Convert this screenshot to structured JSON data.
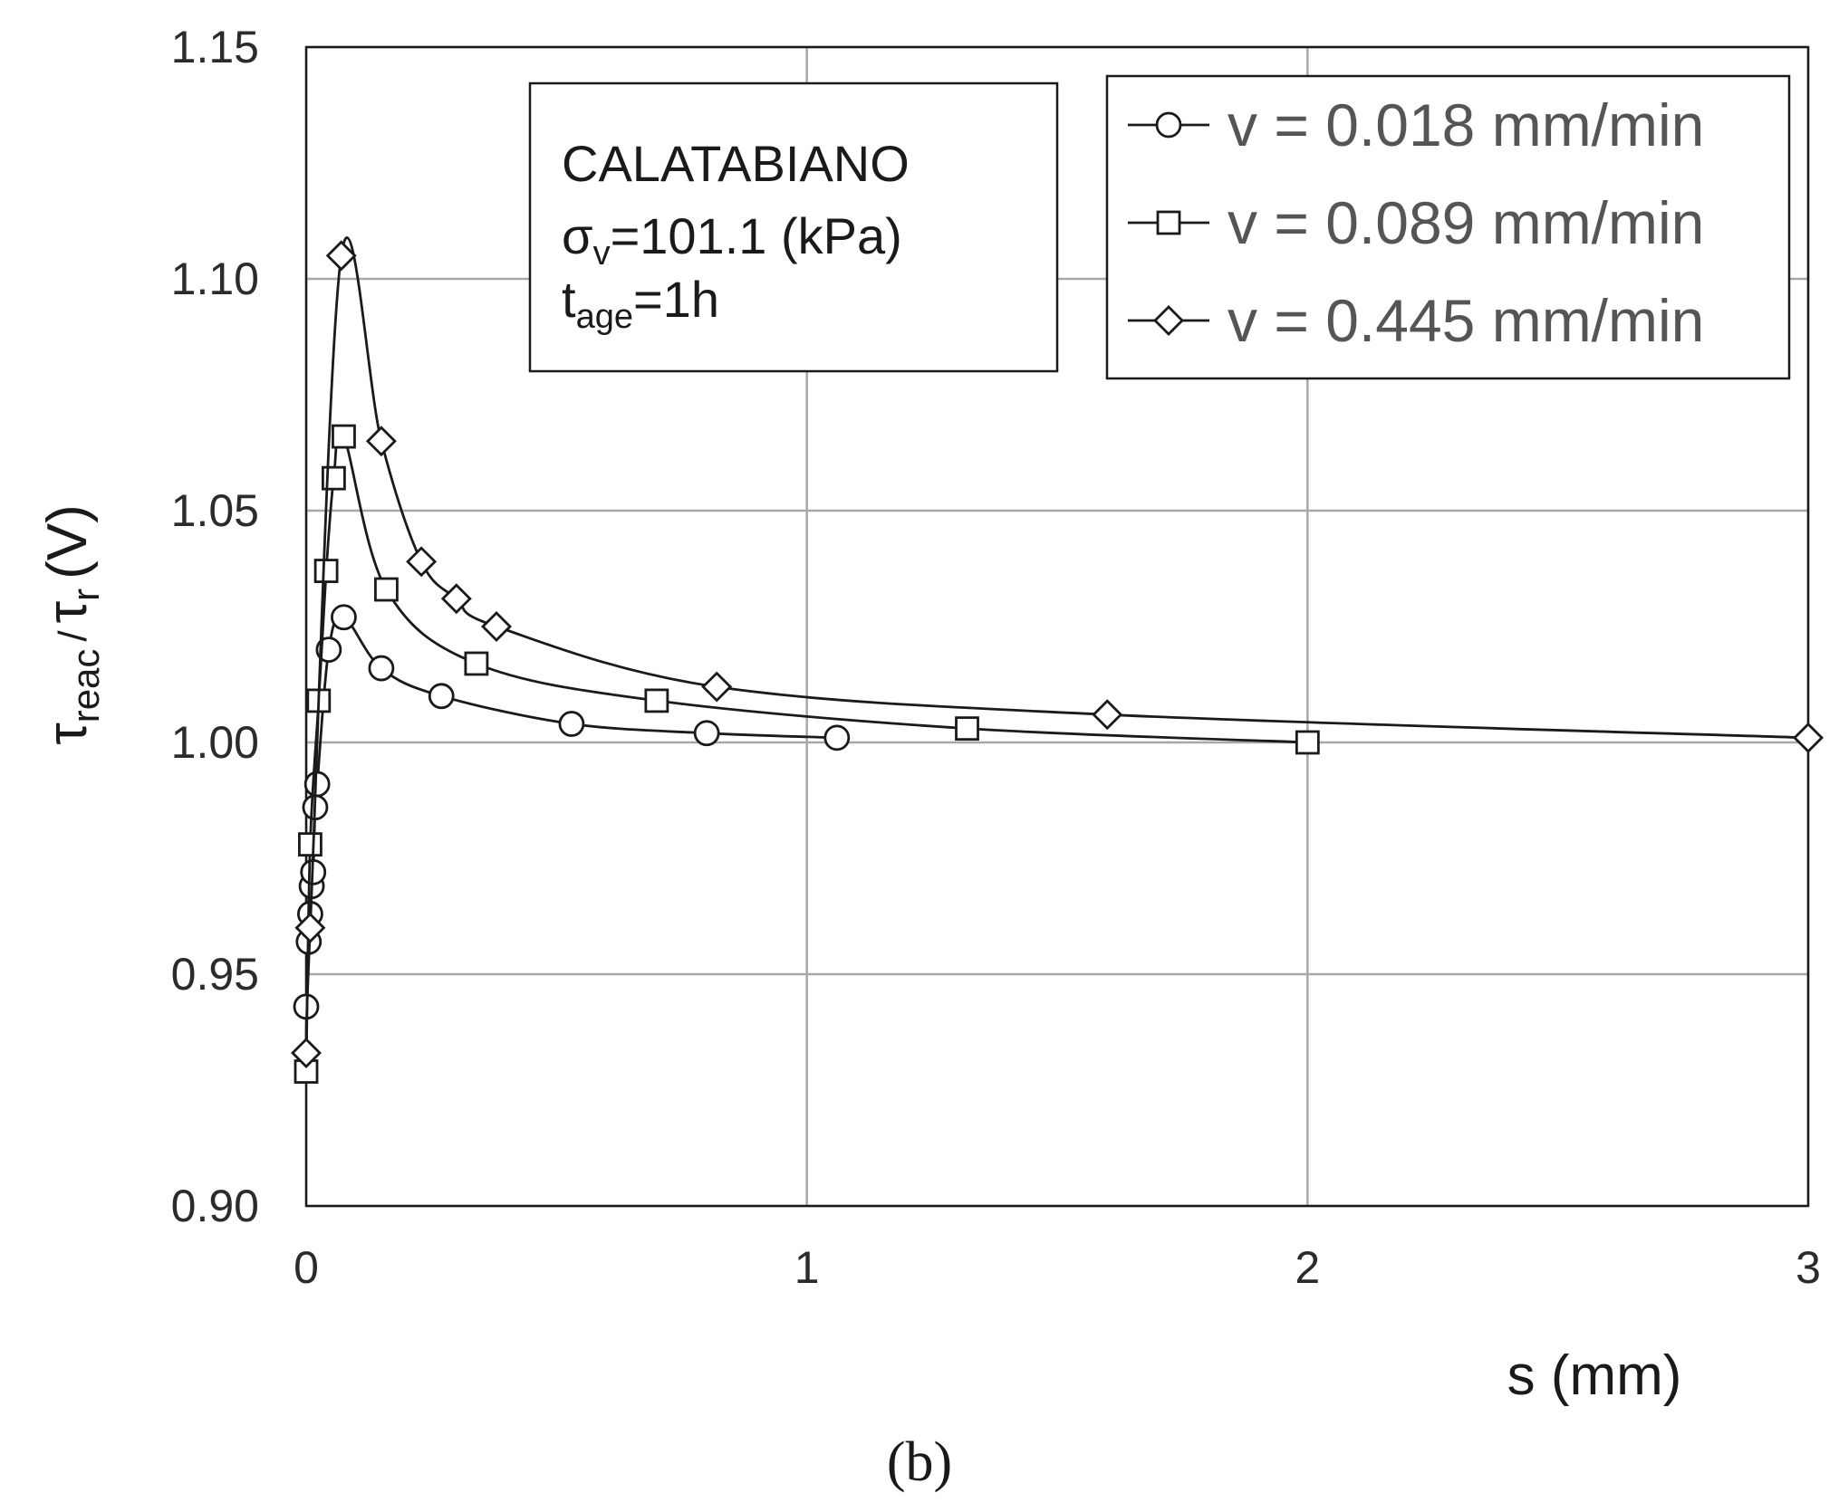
{
  "chart_data": {
    "type": "line",
    "panel_label": "(b)",
    "xlabel": "s (mm)",
    "ylabel": {
      "main": "τ",
      "sub1": "reac",
      "slash": "/",
      "main2": "τ",
      "sub2": "r",
      "unit": "(V)"
    },
    "xlim": [
      0,
      3
    ],
    "ylim": [
      0.9,
      1.15
    ],
    "x_ticks": [
      "0",
      "1",
      "2",
      "3"
    ],
    "y_ticks": [
      "0.90",
      "0.95",
      "1.00",
      "1.05",
      "1.10",
      "1.15"
    ],
    "grid": true,
    "info_box": {
      "line1": "CALATABIANO",
      "sigma_symbol": "σ",
      "sigma_sub": "v",
      "sigma_value": "=101.1 (kPa)",
      "t_symbol": "t",
      "t_sub": "age",
      "t_value": "=1h"
    },
    "legend_position": "top-right",
    "series": [
      {
        "name": "v = 0.018 mm/min",
        "marker": "circle",
        "points": [
          [
            0.0,
            0.943
          ],
          [
            0.005,
            0.957
          ],
          [
            0.008,
            0.963
          ],
          [
            0.011,
            0.969
          ],
          [
            0.014,
            0.972
          ],
          [
            0.018,
            0.986
          ],
          [
            0.022,
            0.991
          ],
          [
            0.045,
            1.02
          ],
          [
            0.075,
            1.027
          ],
          [
            0.15,
            1.016
          ],
          [
            0.27,
            1.01
          ],
          [
            0.53,
            1.004
          ],
          [
            0.8,
            1.002
          ],
          [
            1.06,
            1.001
          ]
        ]
      },
      {
        "name": "v = 0.089 mm/min",
        "marker": "square",
        "points": [
          [
            0.0,
            0.929
          ],
          [
            0.008,
            0.978
          ],
          [
            0.025,
            1.009
          ],
          [
            0.04,
            1.037
          ],
          [
            0.055,
            1.057
          ],
          [
            0.075,
            1.066
          ],
          [
            0.16,
            1.033
          ],
          [
            0.34,
            1.017
          ],
          [
            0.7,
            1.009
          ],
          [
            1.32,
            1.003
          ],
          [
            2.0,
            1.0
          ]
        ]
      },
      {
        "name": "v = 0.445 mm/min",
        "marker": "diamond",
        "points": [
          [
            0.0,
            0.933
          ],
          [
            0.008,
            0.96
          ],
          [
            0.07,
            1.105
          ],
          [
            0.15,
            1.065
          ],
          [
            0.23,
            1.039
          ],
          [
            0.3,
            1.031
          ],
          [
            0.38,
            1.025
          ],
          [
            0.82,
            1.012
          ],
          [
            1.6,
            1.006
          ],
          [
            3.0,
            1.001
          ]
        ]
      }
    ]
  }
}
